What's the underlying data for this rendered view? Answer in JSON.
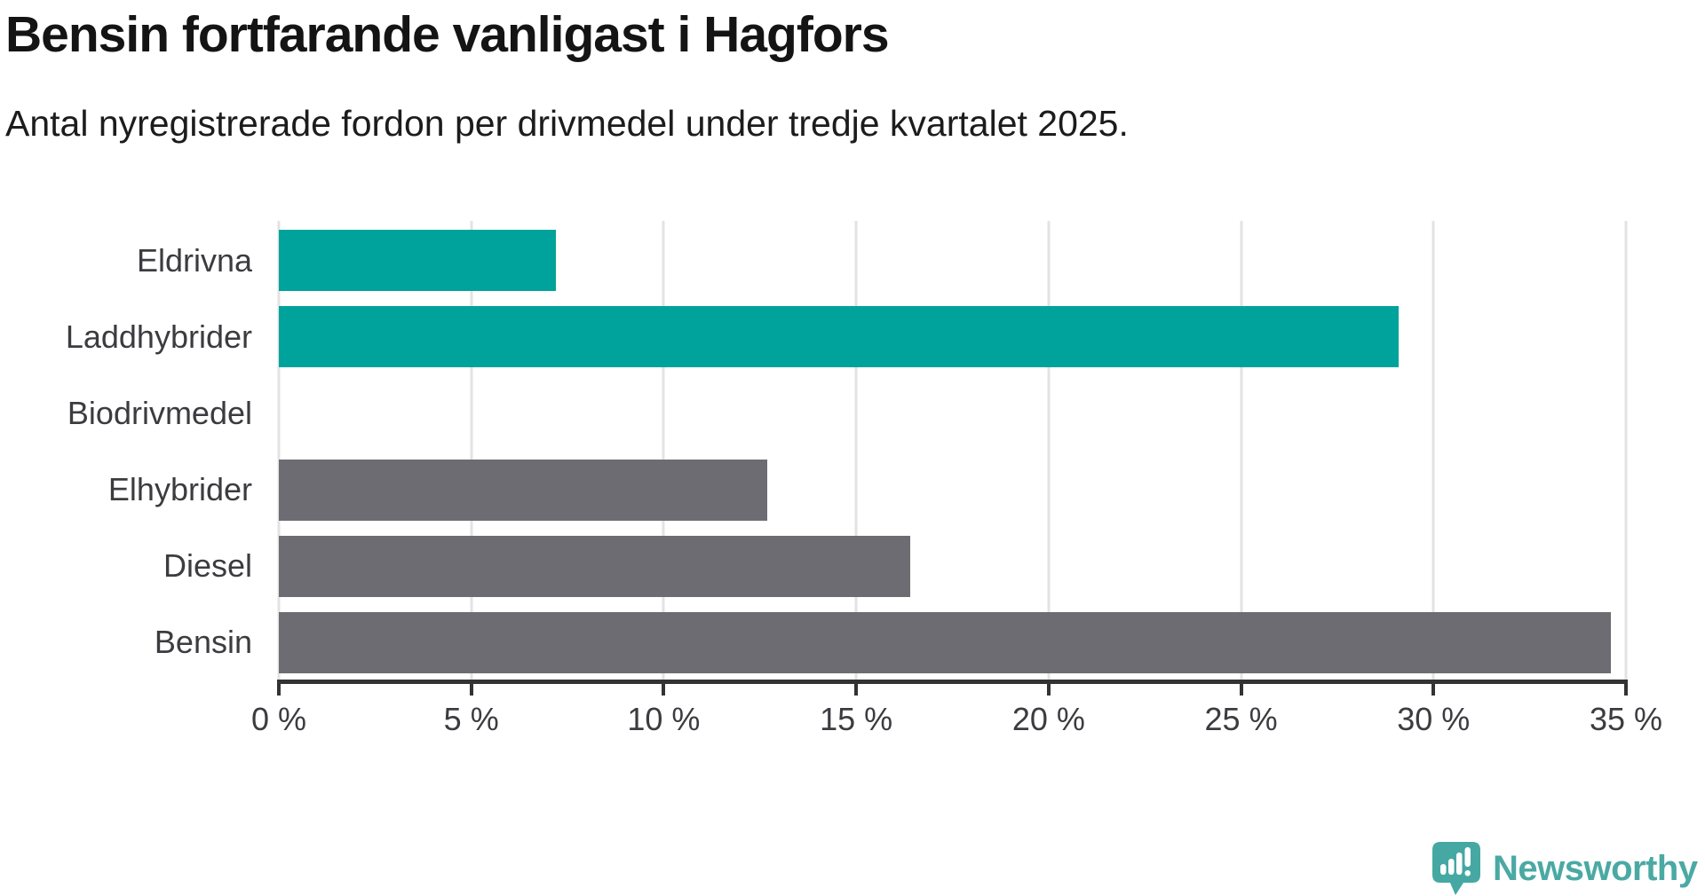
{
  "header": {
    "title": "Bensin fortfarande vanligast i Hagfors",
    "subtitle": "Antal nyregistrerade fordon per drivmedel under tredje kvartalet 2025."
  },
  "chart_data": {
    "type": "bar",
    "orientation": "horizontal",
    "title": "Bensin fortfarande vanligast i Hagfors",
    "subtitle": "Antal nyregistrerade fordon per drivmedel under tredje kvartalet 2025.",
    "categories": [
      "Eldrivna",
      "Laddhybrider",
      "Biodrivmedel",
      "Elhybrider",
      "Diesel",
      "Bensin"
    ],
    "values": [
      7.2,
      29.1,
      0,
      12.7,
      16.4,
      34.6
    ],
    "unit": "%",
    "bar_colors": [
      "#00a39b",
      "#00a39b",
      "#6d6c72",
      "#6d6c72",
      "#6d6c72",
      "#6d6c72"
    ],
    "xlim": [
      0,
      35
    ],
    "x_ticks": [
      0,
      5,
      10,
      15,
      20,
      25,
      30,
      35
    ],
    "x_tick_labels": [
      "0 %",
      "5 %",
      "10 %",
      "15 %",
      "20 %",
      "25 %",
      "30 %",
      "35 %"
    ],
    "grid": "vertical",
    "legend": "none",
    "ylabel": "",
    "xlabel": ""
  },
  "colors": {
    "accent_teal": "#00a39b",
    "bar_gray": "#6d6c72",
    "axis": "#333333",
    "gridline": "#e3e3e3",
    "brand_teal": "#4ba9a4"
  },
  "footer": {
    "brand": "Newsworthy"
  }
}
